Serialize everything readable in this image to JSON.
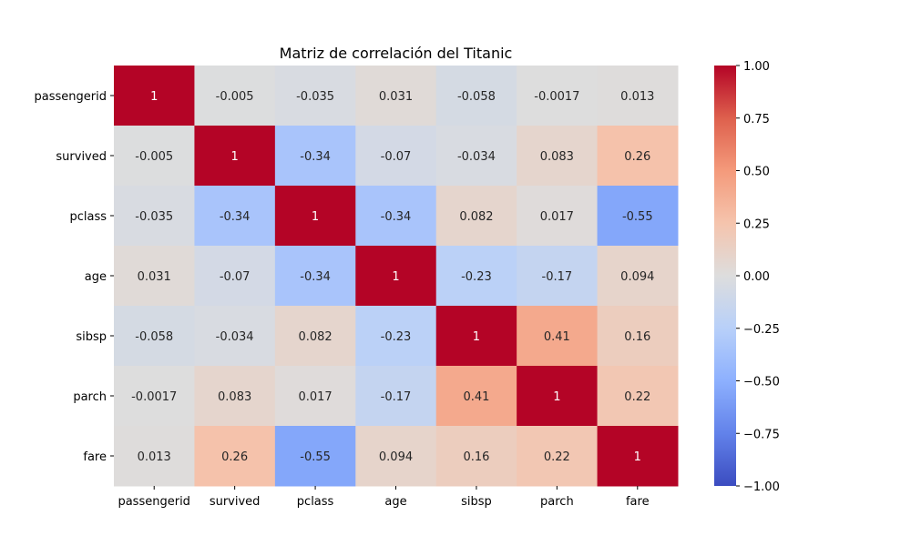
{
  "chart_data": {
    "type": "heatmap",
    "title": "Matriz de correlación del Titanic",
    "xlabel": "",
    "ylabel": "",
    "categories_x": [
      "passengerid",
      "survived",
      "pclass",
      "age",
      "sibsp",
      "parch",
      "fare"
    ],
    "categories_y": [
      "passengerid",
      "survived",
      "pclass",
      "age",
      "sibsp",
      "parch",
      "fare"
    ],
    "values": [
      [
        1,
        -0.005,
        -0.035,
        0.031,
        -0.058,
        -0.0017,
        0.013
      ],
      [
        -0.005,
        1,
        -0.34,
        -0.07,
        -0.034,
        0.083,
        0.26
      ],
      [
        -0.035,
        -0.34,
        1,
        -0.34,
        0.082,
        0.017,
        -0.55
      ],
      [
        0.031,
        -0.07,
        -0.34,
        1,
        -0.23,
        -0.17,
        0.094
      ],
      [
        -0.058,
        -0.034,
        0.082,
        -0.23,
        1,
        0.41,
        0.16
      ],
      [
        -0.0017,
        0.083,
        0.017,
        -0.17,
        0.41,
        1,
        0.22
      ],
      [
        0.013,
        0.26,
        -0.55,
        0.094,
        0.16,
        0.22,
        1
      ]
    ],
    "labels": [
      [
        "1",
        "-0.005",
        "-0.035",
        "0.031",
        "-0.058",
        "-0.0017",
        "0.013"
      ],
      [
        "-0.005",
        "1",
        "-0.34",
        "-0.07",
        "-0.034",
        "0.083",
        "0.26"
      ],
      [
        "-0.035",
        "-0.34",
        "1",
        "-0.34",
        "0.082",
        "0.017",
        "-0.55"
      ],
      [
        "0.031",
        "-0.07",
        "-0.34",
        "1",
        "-0.23",
        "-0.17",
        "0.094"
      ],
      [
        "-0.058",
        "-0.034",
        "0.082",
        "-0.23",
        "1",
        "0.41",
        "0.16"
      ],
      [
        "-0.0017",
        "0.083",
        "0.017",
        "-0.17",
        "0.41",
        "1",
        "0.22"
      ],
      [
        "0.013",
        "0.26",
        "-0.55",
        "0.094",
        "0.16",
        "0.22",
        "1"
      ]
    ],
    "colormap": "coolwarm",
    "vmin": -1,
    "vmax": 1,
    "colorbar": {
      "ticks": [
        1.0,
        0.75,
        0.5,
        0.25,
        0.0,
        -0.25,
        -0.5,
        -0.75,
        -1.0
      ],
      "tick_labels": [
        "1.00",
        "0.75",
        "0.50",
        "0.25",
        "0.00",
        "−0.25",
        "−0.50",
        "−0.75",
        "−1.00"
      ]
    },
    "grid": false,
    "colors": {
      "low": "#3b4cc0",
      "mid": "#dddddd",
      "high": "#b40426"
    }
  }
}
